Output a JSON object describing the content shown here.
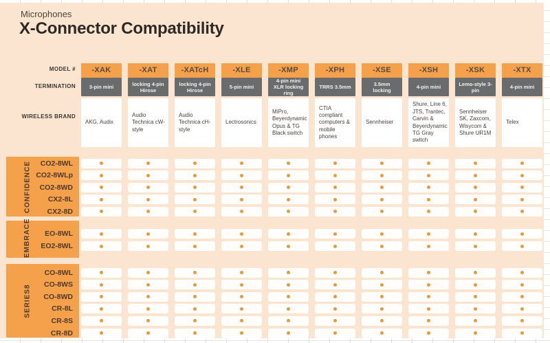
{
  "page": {
    "eyebrow": "Microphones",
    "title": "X-Connector Compatibility"
  },
  "colors": {
    "peach": "#FBE4D0",
    "orange": "#F5A04B",
    "gray": "#6A6B6D",
    "dot": "#E8993B",
    "cell": "#FFFEFC"
  },
  "table": {
    "row_header_labels": {
      "model": "MODEL #",
      "termination": "TERMINATION",
      "brand": "WIRELESS BRAND"
    },
    "columns": [
      {
        "model": "-XAK",
        "termination": "3-pin mini",
        "brand": "AKG, Audix"
      },
      {
        "model": "-XAT",
        "termination": "locking 4-pin Hirose",
        "brand": "Audio Technica cW-style"
      },
      {
        "model": "-XATcH",
        "termination": "locking 4-pin Hirose",
        "brand": "Audio Technica cH-style"
      },
      {
        "model": "-XLE",
        "termination": "5-pin mini",
        "brand": "Lectrosonics"
      },
      {
        "model": "-XMP",
        "termination": "4-pin mini XLR locking ring",
        "brand": "MiPro, Beyerdynamic Opus & TG Black switch"
      },
      {
        "model": "-XPH",
        "termination": "TRRS 3.5mm",
        "brand": "CTIA compliant computers & mobile phones"
      },
      {
        "model": "-XSE",
        "termination": "3.5mm locking",
        "brand": "Sennheiser"
      },
      {
        "model": "-XSH",
        "termination": "4-pin mini",
        "brand": "Shure, Line 6, JTS, Trantec, Carvin & Beyerdynamic TG Gray switch"
      },
      {
        "model": "-XSK",
        "termination": "Lemo-style 3-pin",
        "brand": "Sennheiser SK, Zaxcom, Wisycom & Shure UR1M"
      },
      {
        "model": "-XTX",
        "termination": "4-pin mini",
        "brand": "Telex"
      }
    ],
    "groups": [
      {
        "name": "CONFIDENCE",
        "rows": [
          {
            "label": "CO2-8WL",
            "dots": [
              1,
              1,
              1,
              1,
              1,
              1,
              1,
              1,
              1,
              1
            ]
          },
          {
            "label": "CO2-8WLp",
            "dots": [
              1,
              1,
              1,
              1,
              1,
              1,
              1,
              1,
              1,
              1
            ]
          },
          {
            "label": "CO2-8WD",
            "dots": [
              1,
              1,
              1,
              1,
              1,
              1,
              1,
              1,
              1,
              1
            ]
          },
          {
            "label": "CX2-8L",
            "dots": [
              1,
              1,
              1,
              1,
              1,
              1,
              1,
              1,
              1,
              1
            ]
          },
          {
            "label": "CX2-8D",
            "dots": [
              1,
              1,
              1,
              1,
              1,
              1,
              1,
              1,
              1,
              1
            ]
          }
        ]
      },
      {
        "name": "EMBRACE",
        "rows": [
          {
            "label": "EO-8WL",
            "dots": [
              1,
              1,
              1,
              1,
              1,
              1,
              1,
              1,
              1,
              1
            ]
          },
          {
            "label": "EO2-8WL",
            "dots": [
              1,
              1,
              1,
              1,
              1,
              1,
              1,
              1,
              1,
              1
            ]
          }
        ]
      },
      {
        "name": "SERIES8",
        "rows": [
          {
            "label": "CO-8WL",
            "dots": [
              1,
              1,
              1,
              1,
              1,
              1,
              1,
              1,
              1,
              1
            ]
          },
          {
            "label": "CO-8WS",
            "dots": [
              1,
              1,
              1,
              1,
              1,
              1,
              1,
              1,
              1,
              1
            ]
          },
          {
            "label": "CO-8WD",
            "dots": [
              1,
              1,
              1,
              1,
              1,
              1,
              1,
              1,
              1,
              1
            ]
          },
          {
            "label": "CR-8L",
            "dots": [
              1,
              1,
              1,
              1,
              1,
              1,
              1,
              1,
              1,
              1
            ]
          },
          {
            "label": "CR-8S",
            "dots": [
              1,
              1,
              1,
              1,
              1,
              1,
              1,
              1,
              1,
              1
            ]
          },
          {
            "label": "CR-8D",
            "dots": [
              1,
              1,
              1,
              1,
              1,
              1,
              1,
              1,
              1,
              1
            ]
          }
        ]
      }
    ]
  }
}
